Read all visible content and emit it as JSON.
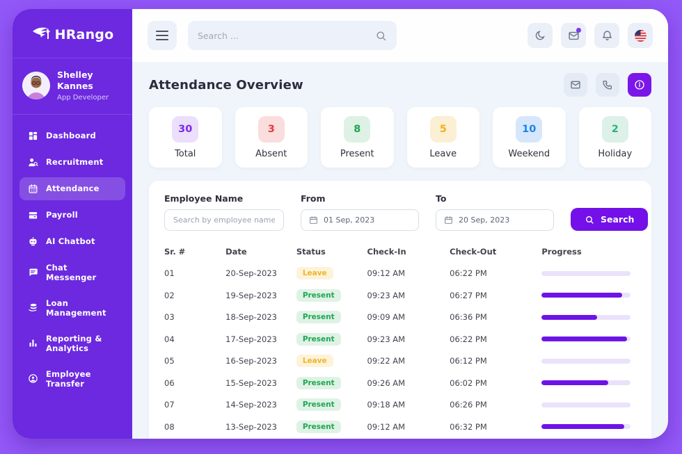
{
  "colors": {
    "accent": "#7311E8",
    "sidebar_bg": "#6C29DF",
    "frame_bg": "#9358F8",
    "progress_fill": "#6D13E8",
    "progress_track": "#EAE2FB"
  },
  "sidebar": {
    "logo_text": "HRango",
    "profile": {
      "name": "Shelley Kannes",
      "role": "App Developer"
    },
    "nav": [
      {
        "label": "Dashboard",
        "icon": "dashboard-icon",
        "active": false
      },
      {
        "label": "Recruitment",
        "icon": "recruitment-icon",
        "active": false
      },
      {
        "label": "Attendance",
        "icon": "attendance-icon",
        "active": true
      },
      {
        "label": "Payroll",
        "icon": "payroll-icon",
        "active": false
      },
      {
        "label": "AI Chatbot",
        "icon": "ai-chatbot-icon",
        "active": false
      },
      {
        "label": "Chat Messenger",
        "icon": "chat-messenger-icon",
        "active": false
      },
      {
        "label": "Loan Management",
        "icon": "loan-management-icon",
        "active": false
      },
      {
        "label": "Reporting & Analytics",
        "icon": "reporting-analytics-icon",
        "active": false
      },
      {
        "label": "Employee Transfer",
        "icon": "employee-transfer-icon",
        "active": false
      }
    ]
  },
  "topbar": {
    "search_placeholder": "Search ...",
    "icons": [
      "moon-icon",
      "mail-icon",
      "bell-icon",
      "us-flag-icon"
    ]
  },
  "page": {
    "title": "Attendance Overview",
    "header_icons": [
      "mail-icon",
      "phone-icon",
      "info-icon"
    ]
  },
  "stats": [
    {
      "label": "Total",
      "value": "30",
      "color": "#7C2BE8",
      "bg": "#EBDFFC"
    },
    {
      "label": "Absent",
      "value": "3",
      "color": "#E23B3B",
      "bg": "#FADDDD"
    },
    {
      "label": "Present",
      "value": "8",
      "color": "#1FA750",
      "bg": "#DDF2E4"
    },
    {
      "label": "Leave",
      "value": "5",
      "color": "#F2B11B",
      "bg": "#FBEFD4"
    },
    {
      "label": "Weekend",
      "value": "10",
      "color": "#1886E8",
      "bg": "#D7E7FB"
    },
    {
      "label": "Holiday",
      "value": "2",
      "color": "#2FAE7E",
      "bg": "#DCF1E7"
    }
  ],
  "filters": {
    "employee": {
      "label": "Employee Name",
      "placeholder": "Search by employee name ..."
    },
    "from": {
      "label": "From",
      "value": "01 Sep, 2023"
    },
    "to": {
      "label": "To",
      "value": "20 Sep, 2023"
    },
    "search_button": "Search"
  },
  "table": {
    "headers": [
      "Sr. #",
      "Date",
      "Status",
      "Check-In",
      "Check-Out",
      "Progress"
    ],
    "status_styles": {
      "Leave": {
        "color": "#F0B42C",
        "bg": "#FDF3D9"
      },
      "Present": {
        "color": "#1FA750",
        "bg": "#DFF2E6"
      }
    },
    "rows": [
      {
        "sr": "01",
        "date": "20-Sep-2023",
        "status": "Leave",
        "check_in": "09:12 AM",
        "check_out": "06:22 PM",
        "progress": 0
      },
      {
        "sr": "02",
        "date": "19-Sep-2023",
        "status": "Present",
        "check_in": "09:23 AM",
        "check_out": "06:27 PM",
        "progress": 90
      },
      {
        "sr": "03",
        "date": "18-Sep-2023",
        "status": "Present",
        "check_in": "09:09 AM",
        "check_out": "06:36 PM",
        "progress": 62
      },
      {
        "sr": "04",
        "date": "17-Sep-2023",
        "status": "Present",
        "check_in": "09:23 AM",
        "check_out": "06:22 PM",
        "progress": 96
      },
      {
        "sr": "05",
        "date": "16-Sep-2023",
        "status": "Leave",
        "check_in": "09:22 AM",
        "check_out": "06:12 PM",
        "progress": 0
      },
      {
        "sr": "06",
        "date": "15-Sep-2023",
        "status": "Present",
        "check_in": "09:26 AM",
        "check_out": "06:02 PM",
        "progress": 75
      },
      {
        "sr": "07",
        "date": "14-Sep-2023",
        "status": "Present",
        "check_in": "09:18 AM",
        "check_out": "06:26 PM",
        "progress": 0
      },
      {
        "sr": "08",
        "date": "13-Sep-2023",
        "status": "Present",
        "check_in": "09:12 AM",
        "check_out": "06:32 PM",
        "progress": 93
      }
    ]
  }
}
